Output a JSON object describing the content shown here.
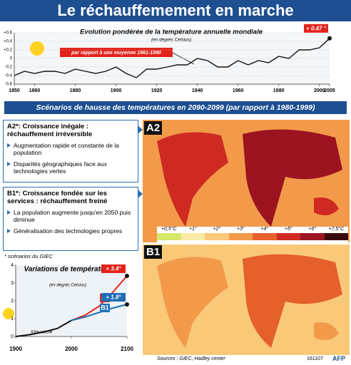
{
  "header": {
    "title": "Le réchauffemement en marche"
  },
  "chart_data": [
    {
      "type": "line",
      "title": "Evolution pondérée de la température annuelle mondiale",
      "subtitle": "(en degrés Celsius)",
      "annotation": "par rapport à une moyenne 1961-1990",
      "x": [
        1850,
        1855,
        1860,
        1865,
        1870,
        1875,
        1880,
        1885,
        1890,
        1895,
        1900,
        1905,
        1910,
        1915,
        1920,
        1925,
        1930,
        1935,
        1940,
        1945,
        1950,
        1955,
        1960,
        1965,
        1970,
        1975,
        1980,
        1985,
        1990,
        1995,
        2000,
        2005
      ],
      "values": [
        -0.4,
        -0.3,
        -0.35,
        -0.3,
        -0.3,
        -0.35,
        -0.25,
        -0.3,
        -0.35,
        -0.3,
        -0.2,
        -0.35,
        -0.45,
        -0.25,
        -0.25,
        -0.2,
        -0.15,
        -0.15,
        0.0,
        -0.05,
        -0.2,
        -0.2,
        -0.05,
        -0.15,
        -0.05,
        -0.1,
        0.05,
        0.0,
        0.2,
        0.2,
        0.25,
        0.47
      ],
      "value_labels": [
        null,
        null,
        null,
        null,
        null,
        null,
        null,
        null,
        null,
        null,
        null,
        null,
        null,
        null,
        null,
        null,
        null,
        null,
        null,
        null,
        null,
        null,
        null,
        null,
        null,
        null,
        null,
        null,
        null,
        null,
        null,
        "+ 0.47 °"
      ],
      "color": "#111111",
      "xlim": [
        1850,
        2005
      ],
      "xticks": [
        1850,
        1860,
        1880,
        1900,
        1920,
        1940,
        1960,
        1980,
        2000,
        2005
      ],
      "ylim": [
        -0.6,
        0.6
      ],
      "yticks": [
        {
          "value": 0.6,
          "label": "+0.6"
        },
        {
          "value": 0.4,
          "label": "+0.4"
        },
        {
          "value": 0.2,
          "label": "+0.2"
        },
        0,
        -0.2,
        -0.4,
        -0.6
      ],
      "grid": true
    },
    {
      "type": "line",
      "title": "Variations de température",
      "subtitle": "(en degrés Celsius)",
      "annotation": "XXe siècle",
      "series": [
        {
          "color": "#111111",
          "x": [
            1900,
            1925,
            1950,
            1975,
            2000
          ],
          "values": [
            0,
            0.1,
            0.25,
            0.45,
            0.9
          ]
        },
        {
          "name": "A2",
          "color": "#e2231a",
          "x": [
            2000,
            2025,
            2050,
            2075,
            2100
          ],
          "values": [
            0.9,
            1.2,
            1.7,
            2.5,
            3.4
          ],
          "value_labels": [
            null,
            null,
            null,
            null,
            "+ 3.4°"
          ]
        },
        {
          "name": "B1",
          "color": "#1f6fb5",
          "x": [
            2000,
            2025,
            2050,
            2075,
            2100
          ],
          "values": [
            0.9,
            1.1,
            1.35,
            1.6,
            1.8
          ],
          "value_labels": [
            null,
            null,
            null,
            null,
            "+ 1.8°"
          ]
        }
      ],
      "xlim": [
        1900,
        2100
      ],
      "xticks": [
        1900,
        2000,
        2100
      ],
      "ylim": [
        0,
        4
      ],
      "yticks": [
        0,
        1,
        2,
        3,
        4
      ],
      "grid": false
    }
  ],
  "scenarios": {
    "title": "Scénarios de hausse des températures en 2090-2099 (par rapport à 1980-1999)",
    "a2": {
      "heading": "A2*: Croissance inégale : réchauffement irréversible",
      "bullets": [
        "Augmentation rapide et constante de la population",
        "Disparités géographiques face aux technologies vertes"
      ]
    },
    "b1": {
      "heading": "B1*: Croissance fondée sur les services : réchauffement freiné",
      "bullets": [
        "La population augmente jusqu'en 2050 puis diminue",
        "Généralisation des technologies propres"
      ]
    },
    "footnote": "* scénarios du GIEC"
  },
  "maps": {
    "a2_label": "A2",
    "b1_label": "B1",
    "legend": [
      {
        "label": "+0,5°C",
        "color": "#d7e86b"
      },
      {
        "label": "+1°",
        "color": "#fbe9a8"
      },
      {
        "label": "+2°",
        "color": "#f9c978"
      },
      {
        "label": "+3°",
        "color": "#f29a4a"
      },
      {
        "label": "+4°",
        "color": "#e5602b"
      },
      {
        "label": "+5°",
        "color": "#cf2a22"
      },
      {
        "label": "+6°",
        "color": "#9c1420"
      },
      {
        "label": "+7,5°C",
        "color": "#3a0a0e"
      }
    ]
  },
  "footer": {
    "source": "Sources : GIEC, Hadley center",
    "code": "161107",
    "agency": "AFP"
  }
}
